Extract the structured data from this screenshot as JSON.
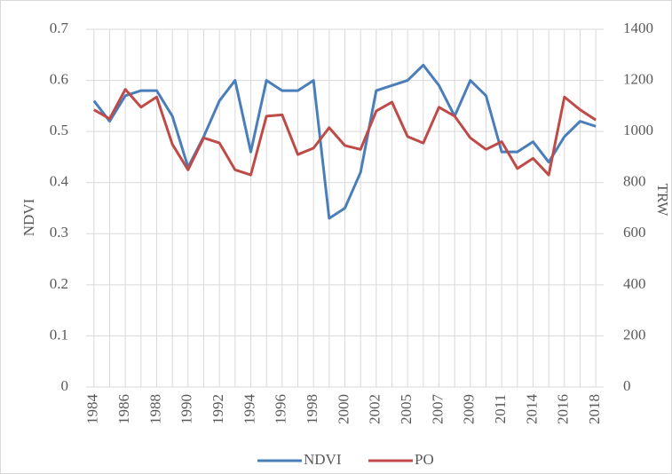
{
  "chart_data": {
    "type": "line",
    "categories": [
      "1984",
      null,
      "1986",
      null,
      "1988",
      null,
      "1990",
      null,
      "1992",
      null,
      "1994",
      null,
      "1996",
      null,
      "1998",
      null,
      "2000",
      null,
      "2002",
      null,
      "2005",
      null,
      "2007",
      null,
      "2009",
      null,
      "2011",
      null,
      "2014",
      null,
      "2016",
      null,
      "2018"
    ],
    "y_label": "NDVI",
    "y2_label": "TRW",
    "ylim": [
      0,
      0.7
    ],
    "yticks": [
      0,
      0.1,
      0.2,
      0.3,
      0.4,
      0.5,
      0.6,
      0.7
    ],
    "y2lim": [
      0,
      1400
    ],
    "y2ticks": [
      0,
      200,
      400,
      600,
      800,
      1000,
      1200,
      1400
    ],
    "grid": true,
    "legend": "bottom",
    "series": [
      {
        "name": "NDVI",
        "color": "#4a7ebb",
        "values": [
          0.56,
          0.52,
          0.57,
          0.58,
          0.58,
          0.53,
          0.43,
          0.49,
          0.56,
          0.6,
          0.46,
          0.6,
          0.58,
          0.58,
          0.6,
          0.33,
          0.35,
          0.42,
          0.58,
          0.59,
          0.6,
          0.63,
          0.59,
          0.53,
          0.6,
          0.57,
          0.46,
          0.46,
          0.48,
          0.44,
          0.49,
          0.52,
          0.51
        ]
      },
      {
        "name": "PO",
        "color": "#be4b48",
        "axis": "y2",
        "values": [
          1085,
          1050,
          1165,
          1095,
          1135,
          950,
          850,
          975,
          955,
          850,
          830,
          1060,
          1065,
          910,
          935,
          1015,
          945,
          930,
          1080,
          1115,
          980,
          955,
          1095,
          1060,
          975,
          930,
          960,
          855,
          895,
          830,
          1135,
          1085,
          1045
        ]
      }
    ]
  }
}
